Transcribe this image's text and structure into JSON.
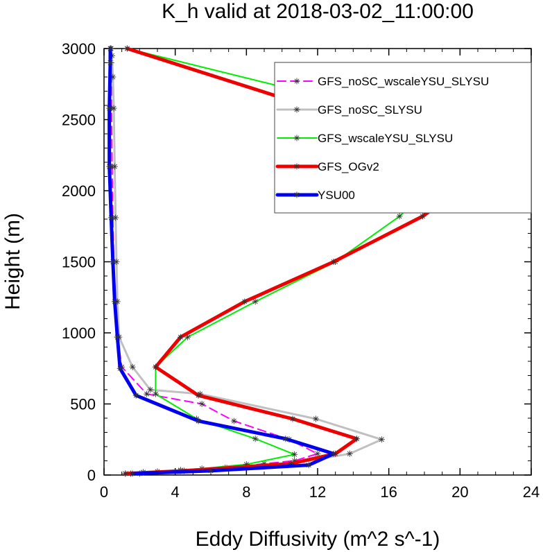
{
  "chart_data": {
    "type": "line",
    "title": "K_h valid at 2018-03-02_11:00:00",
    "xlabel": "Eddy Diffusivity (m^2 s^-1)",
    "ylabel": "Height (m)",
    "xlim": [
      0,
      24
    ],
    "ylim": [
      0,
      3000
    ],
    "xticks": [
      0,
      4,
      8,
      12,
      16,
      20,
      24
    ],
    "yticks": [
      0,
      500,
      1000,
      1500,
      2000,
      2500,
      3000
    ],
    "grid": false,
    "legend": "top-right",
    "series": [
      {
        "name": "GFS_noSC_wscaleYSU_SLYSU",
        "color": "#ff00ff",
        "dash": true,
        "width": 2,
        "x": [
          1.2,
          2.2,
          4.3,
          6.9,
          9.0,
          10.7,
          12.0,
          10.4,
          7.3,
          5.5,
          2.4,
          1.0,
          0.75,
          0.65,
          0.55,
          0.5,
          0.45,
          0.42,
          0.4,
          0.38
        ],
        "y": [
          10,
          20,
          35,
          50,
          80,
          100,
          150,
          250,
          380,
          500,
          570,
          760,
          970,
          1220,
          1500,
          1810,
          2170,
          2580,
          2900,
          3000
        ]
      },
      {
        "name": "GFS_noSC_SLYSU",
        "color": "#c0c0c0",
        "dash": false,
        "width": 3,
        "x": [
          2.0,
          4.3,
          6.8,
          10.5,
          13.8,
          15.6,
          11.9,
          5.4,
          2.6,
          1.6,
          0.85,
          0.75,
          0.7,
          0.65,
          0.6,
          0.55,
          0.5,
          0.45,
          0.4
        ],
        "y": [
          10,
          30,
          50,
          80,
          150,
          250,
          395,
          570,
          600,
          760,
          970,
          1220,
          1500,
          1810,
          2170,
          2580,
          2800,
          2950,
          3000
        ]
      },
      {
        "name": "GFS_wscaleYSU_SLYSU",
        "color": "#00ee00",
        "dash": false,
        "width": 2,
        "x": [
          1.5,
          3.0,
          5.5,
          8.0,
          10.7,
          8.5,
          5.2,
          2.9,
          2.9,
          4.7,
          8.5,
          13.0,
          16.6,
          19.7,
          11.0,
          1.3
        ],
        "y": [
          10,
          25,
          45,
          75,
          145,
          255,
          395,
          570,
          760,
          970,
          1220,
          1500,
          1820,
          2180,
          2700,
          3000
        ]
      },
      {
        "name": "GFS_OGv2",
        "color": "#ee0000",
        "dash": false,
        "width": 5,
        "x": [
          1.2,
          4.5,
          10.5,
          13.0,
          14.2,
          10.6,
          5.3,
          2.9,
          4.3,
          7.9,
          12.9,
          17.9,
          21.9,
          1.3
        ],
        "y": [
          10,
          30,
          80,
          150,
          255,
          395,
          560,
          760,
          970,
          1220,
          1500,
          1820,
          2180,
          3000
        ]
      },
      {
        "name": "YSU00",
        "color": "#0000ee",
        "dash": false,
        "width": 5,
        "x": [
          1.6,
          6.0,
          11.5,
          12.9,
          10.2,
          5.3,
          1.8,
          0.9,
          0.75,
          0.6,
          0.5,
          0.4,
          0.3,
          0.3,
          0.35,
          0.35
        ],
        "y": [
          10,
          30,
          70,
          150,
          255,
          380,
          560,
          750,
          970,
          1220,
          1500,
          1810,
          2170,
          2580,
          2900,
          3000
        ]
      }
    ]
  }
}
